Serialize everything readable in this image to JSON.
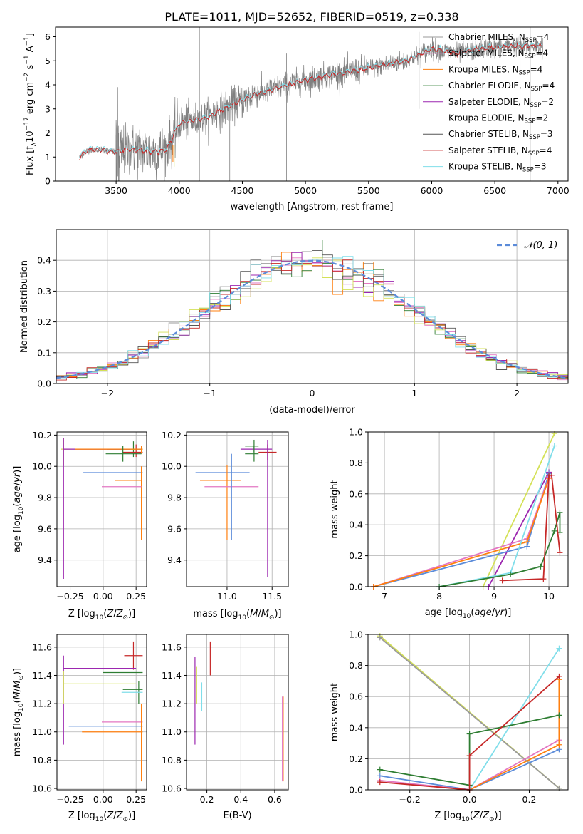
{
  "title": "PLATE=1011, MJD=52652, FIBERID=0519, z=0.338",
  "legend_models": [
    {
      "label": "Chabrier MILES, N",
      "sub": "SSP",
      "suffix": "=4",
      "color": "#999999"
    },
    {
      "label": "Salpeter MILES, N",
      "sub": "SSP",
      "suffix": "=4",
      "color": "#e377c2"
    },
    {
      "label": "Kroupa MILES, N",
      "sub": "SSP",
      "suffix": "=4",
      "color": "#ff7f0e"
    },
    {
      "label": "Chabrier ELODIE, N",
      "sub": "SSP",
      "suffix": "=4",
      "color": "#2e7d32"
    },
    {
      "label": "Salpeter ELODIE, N",
      "sub": "SSP",
      "suffix": "=2",
      "color": "#9c27b0"
    },
    {
      "label": "Kroupa ELODIE, N",
      "sub": "SSP",
      "suffix": "=2",
      "color": "#d4e157"
    },
    {
      "label": "Chabrier STELIB, N",
      "sub": "SSP",
      "suffix": "=3",
      "color": "#555555"
    },
    {
      "label": "Salpeter STELIB, N",
      "sub": "SSP",
      "suffix": "=4",
      "color": "#c62828"
    },
    {
      "label": "Kroupa STELIB, N",
      "sub": "SSP",
      "suffix": "=3",
      "color": "#80deea"
    }
  ],
  "chart_data": [
    {
      "type": "line",
      "id": "spectrum",
      "xlabel": "wavelength [Angstrom, rest frame]",
      "ylabel_parts": [
        "Flux [f",
        "λ",
        "10",
        "−17",
        " erg cm",
        "−2",
        " s",
        "−1",
        " A",
        "−1",
        "]"
      ],
      "xlim": [
        3020,
        7080
      ],
      "ylim": [
        0,
        6.4
      ],
      "xticks": [
        3500,
        4000,
        4500,
        5000,
        5500,
        6000,
        6500,
        7000
      ],
      "yticks": [
        0,
        1,
        2,
        3,
        4,
        5,
        6
      ],
      "data_range": [
        3210,
        6880
      ],
      "continuum_x": [
        3210,
        3280,
        3400,
        3500,
        3600,
        3700,
        3800,
        3900,
        4000,
        4200,
        4400,
        4600,
        4800,
        5000,
        5200,
        5400,
        5600,
        5800,
        6000,
        6200,
        6400,
        6600,
        6880
      ],
      "continuum_y": [
        1.0,
        1.3,
        1.3,
        1.2,
        1.3,
        1.3,
        1.2,
        1.3,
        2.4,
        2.6,
        3.1,
        3.6,
        3.9,
        4.2,
        4.4,
        4.6,
        4.8,
        5.0,
        5.5,
        5.3,
        5.5,
        5.6,
        5.6
      ],
      "model_color": "#c62828",
      "model2_color": "#80deea"
    },
    {
      "type": "histogram",
      "id": "residuals",
      "xlabel": "(data-model)/error",
      "ylabel": "Normed distribution",
      "xlim": [
        -2.5,
        2.5
      ],
      "ylim": [
        0,
        0.5
      ],
      "xticks": [
        -2,
        -1,
        0,
        1,
        2
      ],
      "yticks": [
        0,
        0.1,
        0.2,
        0.3,
        0.4
      ],
      "legend": "𝒩(0, 1)",
      "gauss_color": "#5b8bd9"
    },
    {
      "type": "errorbar",
      "id": "age-vs-Z",
      "xlabel": "Z [log10(Z/Z⊙)]",
      "ylabel": "age  [log10(age/yr)]",
      "xlim": [
        -0.35,
        0.33
      ],
      "ylim": [
        9.23,
        10.22
      ],
      "xticks": [
        -0.25,
        0,
        0.25
      ],
      "yticks": [
        9.4,
        9.6,
        9.8,
        10.0,
        10.2
      ],
      "points": [
        {
          "x": 0.23,
          "y": 10.11,
          "xerr": [
            0.2,
            0.07
          ],
          "yerr": [
            0.05,
            0.05
          ],
          "color": "#2e7d32"
        },
        {
          "x": 0.25,
          "y": 10.09,
          "xerr": [
            0.1,
            0.05
          ],
          "yerr": [
            0.03,
            0.05
          ],
          "color": "#c62828"
        },
        {
          "x": -0.3,
          "y": 10.11,
          "xerr": [
            0.02,
            0.55
          ],
          "yerr": [
            0.1,
            0.07
          ],
          "color": "#d4e157"
        },
        {
          "x": -0.3,
          "y": 10.11,
          "xerr": [
            0.0,
            0.5
          ],
          "yerr": [
            0.83,
            0.07
          ],
          "color": "#9c27b0"
        },
        {
          "x": 0.29,
          "y": 10.11,
          "xerr": [
            0.5,
            0.01
          ],
          "yerr": [
            0.03,
            0.02
          ],
          "color": "#ff7f0e"
        },
        {
          "x": 0.15,
          "y": 10.08,
          "xerr": [
            0.13,
            0.14
          ],
          "yerr": [
            0.05,
            0.05
          ],
          "color": "#2e7d32"
        },
        {
          "x": 0.15,
          "y": 9.96,
          "xerr": [
            0.3,
            0.15
          ],
          "yerr": [
            0.0,
            0.0
          ],
          "color": "#5b8bd9"
        },
        {
          "x": 0.29,
          "y": 9.91,
          "xerr": [
            0.2,
            0.0
          ],
          "yerr": [
            0.38,
            0.09
          ],
          "color": "#ff7f0e"
        },
        {
          "x": 0.29,
          "y": 9.87,
          "xerr": [
            0.3,
            0.0
          ],
          "yerr": [
            0.0,
            0.0
          ],
          "color": "#e377c2"
        }
      ]
    },
    {
      "type": "errorbar",
      "id": "age-vs-mass",
      "xlabel": "mass [log10(M/M⊙)]",
      "ylabel": "",
      "xlim": [
        10.55,
        11.68
      ],
      "ylim": [
        9.23,
        10.22
      ],
      "xticks": [
        11.0,
        11.5
      ],
      "yticks": [
        9.4,
        9.6,
        9.8,
        10.0,
        10.2
      ],
      "points": [
        {
          "x": 11.45,
          "y": 10.09,
          "xerr": [
            0.1,
            0.1
          ],
          "yerr": [
            0.05,
            0.05
          ],
          "color": "#c62828"
        },
        {
          "x": 11.3,
          "y": 10.13,
          "xerr": [
            0.1,
            0.05
          ],
          "yerr": [
            0.04,
            0.04
          ],
          "color": "#2e7d32"
        },
        {
          "x": 11.45,
          "y": 10.11,
          "xerr": [
            0.3,
            0.05
          ],
          "yerr": [
            0.82,
            0.06
          ],
          "color": "#9c27b0"
        },
        {
          "x": 11.3,
          "y": 10.08,
          "xerr": [
            0.1,
            0.05
          ],
          "yerr": [
            0.05,
            0.05
          ],
          "color": "#2e7d32"
        },
        {
          "x": 11.0,
          "y": 9.96,
          "xerr": [
            0.35,
            0.25
          ],
          "yerr": [
            0.0,
            0.0
          ],
          "color": "#5b8bd9"
        },
        {
          "x": 11.0,
          "y": 9.91,
          "xerr": [
            0.3,
            0.15
          ],
          "yerr": [
            0.38,
            0.1
          ],
          "color": "#ff7f0e"
        },
        {
          "x": 11.1,
          "y": 9.87,
          "xerr": [
            0.35,
            0.25
          ],
          "yerr": [
            0.0,
            0.0
          ],
          "color": "#e377c2"
        },
        {
          "x": 11.05,
          "y": 9.98,
          "xerr": [
            0.0,
            0.0
          ],
          "yerr": [
            0.45,
            0.1
          ],
          "color": "#5b8bd9"
        }
      ]
    },
    {
      "type": "line",
      "id": "weight-vs-age",
      "xlabel": "age  [log10(age/yr)]",
      "ylabel": "mass weight",
      "xlim": [
        6.7,
        10.35
      ],
      "ylim": [
        0,
        1.0
      ],
      "xticks": [
        7,
        8,
        9,
        10
      ],
      "yticks": [
        0.0,
        0.2,
        0.4,
        0.6,
        0.8,
        1.0
      ],
      "series": [
        {
          "color": "#d4e157",
          "x": [
            8.8,
            10.1
          ],
          "y": [
            0.0,
            0.99
          ]
        },
        {
          "color": "#9c27b0",
          "x": [
            8.9,
            10.0
          ],
          "y": [
            0.0,
            0.74
          ]
        },
        {
          "color": "#5b8bd9",
          "x": [
            6.8,
            9.6,
            10.0
          ],
          "y": [
            0.0,
            0.26,
            0.73
          ]
        },
        {
          "color": "#e377c2",
          "x": [
            6.8,
            9.6,
            10.0
          ],
          "y": [
            0.0,
            0.31,
            0.71
          ]
        },
        {
          "color": "#ff7f0e",
          "x": [
            6.8,
            9.6,
            10.0
          ],
          "y": [
            0.0,
            0.29,
            0.7
          ]
        },
        {
          "color": "#80deea",
          "x": [
            8.0,
            9.3,
            10.1
          ],
          "y": [
            0.0,
            0.09,
            0.91
          ]
        },
        {
          "color": "#2e7d32",
          "x": [
            8.0,
            9.3,
            9.85,
            10.1,
            10.2,
            10.2
          ],
          "y": [
            0.0,
            0.08,
            0.13,
            0.36,
            0.48,
            0.35
          ]
        },
        {
          "color": "#c62828",
          "x": [
            9.15,
            9.9,
            10.0,
            10.05,
            10.2
          ],
          "y": [
            0.04,
            0.05,
            0.72,
            0.72,
            0.22
          ]
        }
      ]
    },
    {
      "type": "errorbar",
      "id": "mass-vs-Z",
      "xlabel": "Z [log10(Z/Z⊙)]",
      "ylabel": "mass [log10(M/M⊙)]",
      "xlim": [
        -0.35,
        0.33
      ],
      "ylim": [
        10.59,
        11.69
      ],
      "xticks": [
        -0.25,
        0,
        0.25
      ],
      "yticks": [
        10.6,
        10.8,
        11.0,
        11.2,
        11.4,
        11.6
      ],
      "points": [
        {
          "x": 0.23,
          "y": 11.54,
          "xerr": [
            0.07,
            0.07
          ],
          "yerr": [
            0.1,
            0.1
          ],
          "color": "#c62828"
        },
        {
          "x": -0.3,
          "y": 11.45,
          "xerr": [
            0.0,
            0.55
          ],
          "yerr": [
            0.54,
            0.09
          ],
          "color": "#9c27b0"
        },
        {
          "x": 0.2,
          "y": 11.42,
          "xerr": [
            0.2,
            0.1
          ],
          "yerr": [
            0.0,
            0.0
          ],
          "color": "#2e7d32"
        },
        {
          "x": -0.3,
          "y": 11.34,
          "xerr": [
            0.0,
            0.55
          ],
          "yerr": [
            0.14,
            0.09
          ],
          "color": "#d4e157"
        },
        {
          "x": 0.27,
          "y": 11.3,
          "xerr": [
            0.12,
            0.03
          ],
          "yerr": [
            0.1,
            0.06
          ],
          "color": "#2e7d32"
        },
        {
          "x": 0.27,
          "y": 11.28,
          "xerr": [
            0.13,
            0.03
          ],
          "yerr": [
            0.0,
            0.0
          ],
          "color": "#80deea"
        },
        {
          "x": 0.29,
          "y": 11.07,
          "xerr": [
            0.3,
            0.01
          ],
          "yerr": [
            0.0,
            0.0
          ],
          "color": "#e377c2"
        },
        {
          "x": 0.29,
          "y": 11.04,
          "xerr": [
            0.55,
            0.01
          ],
          "yerr": [
            0.0,
            0.0
          ],
          "color": "#5b8bd9"
        },
        {
          "x": 0.29,
          "y": 11.0,
          "xerr": [
            0.45,
            0.01
          ],
          "yerr": [
            0.35,
            0.2
          ],
          "color": "#ff7f0e"
        }
      ]
    },
    {
      "type": "errorbar",
      "id": "mass-vs-EBV",
      "xlabel": "E(B-V)",
      "ylabel": "",
      "xlim": [
        0.08,
        0.68
      ],
      "ylim": [
        10.59,
        11.69
      ],
      "xticks": [
        0.2,
        0.4,
        0.6
      ],
      "yticks": [
        10.6,
        10.8,
        11.0,
        11.2,
        11.4,
        11.6
      ],
      "points": [
        {
          "x": 0.22,
          "y": 11.52,
          "xerr": [
            0.0,
            0.0
          ],
          "yerr": [
            0.12,
            0.12
          ],
          "color": "#c62828"
        },
        {
          "x": 0.13,
          "y": 11.22,
          "xerr": [
            0.0,
            0.0
          ],
          "yerr": [
            0.31,
            0.31
          ],
          "color": "#9c27b0"
        },
        {
          "x": 0.14,
          "y": 11.33,
          "xerr": [
            0.0,
            0.0
          ],
          "yerr": [
            0.13,
            0.13
          ],
          "color": "#d4e157"
        },
        {
          "x": 0.17,
          "y": 11.25,
          "xerr": [
            0.0,
            0.0
          ],
          "yerr": [
            0.1,
            0.1
          ],
          "color": "#80deea"
        },
        {
          "x": 0.65,
          "y": 11.0,
          "xerr": [
            0.0,
            0.0
          ],
          "yerr": [
            0.35,
            0.25
          ],
          "color": "#ff7f0e"
        },
        {
          "x": 0.645,
          "y": 10.95,
          "xerr": [
            0.0,
            0.0
          ],
          "yerr": [
            0.3,
            0.3
          ],
          "color": "#e377c2"
        }
      ]
    },
    {
      "type": "line",
      "id": "weight-vs-Z",
      "xlabel": "Z [log10(Z/Z⊙)]",
      "ylabel": "mass weight",
      "xlim": [
        -0.34,
        0.33
      ],
      "ylim": [
        0,
        1.0
      ],
      "xticks": [
        -0.2,
        0.0,
        0.2
      ],
      "yticks": [
        0.0,
        0.2,
        0.4,
        0.6,
        0.8,
        1.0
      ],
      "series": [
        {
          "color": "#d4e157",
          "x": [
            -0.3,
            0.3
          ],
          "y": [
            0.99,
            0.01
          ]
        },
        {
          "color": "#999999",
          "x": [
            -0.3,
            0.3
          ],
          "y": [
            0.98,
            0.01
          ]
        },
        {
          "color": "#5b8bd9",
          "x": [
            -0.3,
            0.0,
            0.3
          ],
          "y": [
            0.09,
            0.0,
            0.26
          ]
        },
        {
          "color": "#e377c2",
          "x": [
            -0.3,
            0.0,
            0.3
          ],
          "y": [
            0.06,
            0.0,
            0.32
          ]
        },
        {
          "color": "#ff7f0e",
          "x": [
            0.0,
            0.3,
            0.3
          ],
          "y": [
            0.0,
            0.29,
            0.71
          ]
        },
        {
          "color": "#80deea",
          "x": [
            0.0,
            0.3
          ],
          "y": [
            0.0,
            0.91
          ]
        },
        {
          "color": "#2e7d32",
          "x": [
            -0.3,
            0.0,
            0.0,
            0.3
          ],
          "y": [
            0.13,
            0.03,
            0.36,
            0.48
          ]
        },
        {
          "color": "#c62828",
          "x": [
            -0.3,
            0.0,
            0.0,
            0.3
          ],
          "y": [
            0.05,
            0.0,
            0.22,
            0.73
          ]
        }
      ]
    }
  ]
}
